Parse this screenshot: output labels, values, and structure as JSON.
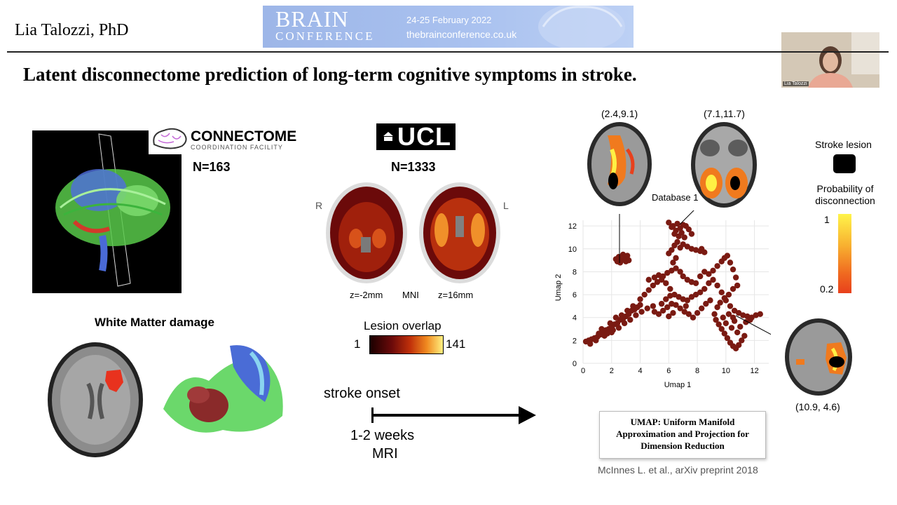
{
  "header": {
    "presenter": "Lia Talozzi, PhD",
    "banner_brand": "BRAIN",
    "banner_sub": "CONFERENCE",
    "banner_dates": "24-25 February 2022",
    "banner_url": "thebrainconference.co.uk",
    "webcam_label": "Lia Talozzi"
  },
  "slide": {
    "title": "Latent disconnectome prediction of long-term cognitive symptoms in stroke."
  },
  "left": {
    "logo_main": "CONNECTOME",
    "logo_sub": "COORDINATION FACILITY",
    "n_connectome": "N=163",
    "wm_title": "White Matter damage"
  },
  "center": {
    "ucl_logo": "UCL",
    "n_ucl": "N=1333",
    "label_r": "R",
    "label_l": "L",
    "label_z1": "z=-2mm",
    "label_mni": "MNI",
    "label_z2": "z=16mm",
    "lesion_title": "Lesion overlap",
    "lesion_min": "1",
    "lesion_max": "141",
    "stroke_onset": "stroke onset",
    "weeks": "1-2 weeks",
    "mri": "MRI"
  },
  "right": {
    "coord1": "(2.4,9.1)",
    "coord2": "(7.1,11.7)",
    "coord3": "(10.9, 4.6)",
    "database_label": "Database 1",
    "stroke_lesion_label": "Stroke lesion",
    "prob_label": "Probability of disconnection",
    "prob_max": "1",
    "prob_min": "0.2",
    "umap_box": "UMAP: Uniform Manifold Approximation and Projection for Dimension Reduction",
    "citation": "McInnes L. et al., arXiv preprint 2018"
  },
  "colors": {
    "scatter_point": "#7a1a12",
    "lesion_red": "#e8321e",
    "banner_blue": "#a9c1ef"
  },
  "chart_data": {
    "type": "scatter",
    "xlabel": "Umap 1",
    "ylabel": "Umap 2",
    "xlim": [
      0,
      13
    ],
    "ylim": [
      0,
      12.5
    ],
    "xticks": [
      0,
      2,
      4,
      6,
      8,
      10,
      12
    ],
    "yticks": [
      0,
      2,
      4,
      6,
      8,
      10,
      12
    ],
    "grid": true,
    "points": [
      [
        0.2,
        1.9
      ],
      [
        0.4,
        2.0
      ],
      [
        0.6,
        2.1
      ],
      [
        0.8,
        2.2
      ],
      [
        1.0,
        2.3
      ],
      [
        1.2,
        2.5
      ],
      [
        1.4,
        2.7
      ],
      [
        1.6,
        2.9
      ],
      [
        1.8,
        3.0
      ],
      [
        2.0,
        3.2
      ],
      [
        2.2,
        3.4
      ],
      [
        2.4,
        3.5
      ],
      [
        2.6,
        3.8
      ],
      [
        2.8,
        3.9
      ],
      [
        3.0,
        4.1
      ],
      [
        3.2,
        4.3
      ],
      [
        3.4,
        4.6
      ],
      [
        3.6,
        4.7
      ],
      [
        3.8,
        4.9
      ],
      [
        4.0,
        5.1
      ],
      [
        1.1,
        2.6
      ],
      [
        1.5,
        2.4
      ],
      [
        2.1,
        2.9
      ],
      [
        2.5,
        3.1
      ],
      [
        2.9,
        3.5
      ],
      [
        3.3,
        3.8
      ],
      [
        3.7,
        4.2
      ],
      [
        4.1,
        4.5
      ],
      [
        4.5,
        4.8
      ],
      [
        4.9,
        5.0
      ],
      [
        1.3,
        3.0
      ],
      [
        1.9,
        3.5
      ],
      [
        2.3,
        4.0
      ],
      [
        2.7,
        4.2
      ],
      [
        3.1,
        4.6
      ],
      [
        3.5,
        5.0
      ],
      [
        0.5,
        1.7
      ],
      [
        0.9,
        2.0
      ],
      [
        1.7,
        2.6
      ],
      [
        2.0,
        2.7
      ],
      [
        4.0,
        5.6
      ],
      [
        4.3,
        6.0
      ],
      [
        4.6,
        6.4
      ],
      [
        4.9,
        6.8
      ],
      [
        5.2,
        7.1
      ],
      [
        5.5,
        7.3
      ],
      [
        5.8,
        7.0
      ],
      [
        6.1,
        6.5
      ],
      [
        6.4,
        6.0
      ],
      [
        6.7,
        5.8
      ],
      [
        7.0,
        5.6
      ],
      [
        7.3,
        5.5
      ],
      [
        7.6,
        5.8
      ],
      [
        7.9,
        6.0
      ],
      [
        8.2,
        6.2
      ],
      [
        8.5,
        6.5
      ],
      [
        8.8,
        7.0
      ],
      [
        9.1,
        7.3
      ],
      [
        9.4,
        6.8
      ],
      [
        9.7,
        6.2
      ],
      [
        10.0,
        5.5
      ],
      [
        10.3,
        5.0
      ],
      [
        10.6,
        4.6
      ],
      [
        10.9,
        4.4
      ],
      [
        11.2,
        4.2
      ],
      [
        11.5,
        4.1
      ],
      [
        11.8,
        4.0
      ],
      [
        12.1,
        4.2
      ],
      [
        12.4,
        4.3
      ],
      [
        10.5,
        4.0
      ],
      [
        4.6,
        7.3
      ],
      [
        5.0,
        7.5
      ],
      [
        5.3,
        7.7
      ],
      [
        5.6,
        7.6
      ],
      [
        5.9,
        7.9
      ],
      [
        6.2,
        8.1
      ],
      [
        6.5,
        8.3
      ],
      [
        6.8,
        8.0
      ],
      [
        7.0,
        7.6
      ],
      [
        7.3,
        7.3
      ],
      [
        7.6,
        7.1
      ],
      [
        7.9,
        7.0
      ],
      [
        8.2,
        7.6
      ],
      [
        8.5,
        8.0
      ],
      [
        8.8,
        7.8
      ],
      [
        9.1,
        8.1
      ],
      [
        9.4,
        8.5
      ],
      [
        9.7,
        8.9
      ],
      [
        9.9,
        9.2
      ],
      [
        10.1,
        9.4
      ],
      [
        10.3,
        8.8
      ],
      [
        10.5,
        8.2
      ],
      [
        10.7,
        7.5
      ],
      [
        10.8,
        6.8
      ],
      [
        10.5,
        6.5
      ],
      [
        10.2,
        6.0
      ],
      [
        9.9,
        5.7
      ],
      [
        9.6,
        5.3
      ],
      [
        9.4,
        4.9
      ],
      [
        9.2,
        4.3
      ],
      [
        9.3,
        3.8
      ],
      [
        9.5,
        3.4
      ],
      [
        9.7,
        3.0
      ],
      [
        9.9,
        2.6
      ],
      [
        10.1,
        2.2
      ],
      [
        10.3,
        1.8
      ],
      [
        10.5,
        1.5
      ],
      [
        10.7,
        1.3
      ],
      [
        10.9,
        1.6
      ],
      [
        11.1,
        2.0
      ],
      [
        11.3,
        2.4
      ],
      [
        10.8,
        2.7
      ],
      [
        10.4,
        3.1
      ],
      [
        10.0,
        3.5
      ],
      [
        9.8,
        4.0
      ],
      [
        10.2,
        4.3
      ],
      [
        10.6,
        3.7
      ],
      [
        11.0,
        3.2
      ],
      [
        11.4,
        3.6
      ],
      [
        11.7,
        3.8
      ],
      [
        5.0,
        4.5
      ],
      [
        5.3,
        4.3
      ],
      [
        5.6,
        4.6
      ],
      [
        5.9,
        4.9
      ],
      [
        6.2,
        5.2
      ],
      [
        6.5,
        5.1
      ],
      [
        6.8,
        4.8
      ],
      [
        7.1,
        4.5
      ],
      [
        7.4,
        4.3
      ],
      [
        7.7,
        4.0
      ],
      [
        8.0,
        4.4
      ],
      [
        8.3,
        4.8
      ],
      [
        8.6,
        5.2
      ],
      [
        8.9,
        5.5
      ],
      [
        6.0,
        4.1
      ],
      [
        6.3,
        4.4
      ],
      [
        5.5,
        5.2
      ],
      [
        5.8,
        5.6
      ],
      [
        6.1,
        5.9
      ],
      [
        7.2,
        5.0
      ],
      [
        6.0,
        9.6
      ],
      [
        6.2,
        9.9
      ],
      [
        6.4,
        10.3
      ],
      [
        6.6,
        10.6
      ],
      [
        6.8,
        10.1
      ],
      [
        6.5,
        9.2
      ],
      [
        6.3,
        8.8
      ],
      [
        7.0,
        10.4
      ],
      [
        7.3,
        10.2
      ],
      [
        7.6,
        10.0
      ],
      [
        7.9,
        9.9
      ],
      [
        8.2,
        9.8
      ],
      [
        8.5,
        9.7
      ],
      [
        8.3,
        10.0
      ],
      [
        6.7,
        11.1
      ],
      [
        6.5,
        11.6
      ],
      [
        6.8,
        11.8
      ],
      [
        6.9,
        11.4
      ],
      [
        7.2,
        12.0
      ],
      [
        7.4,
        11.7
      ],
      [
        7.6,
        11.3
      ],
      [
        7.1,
        11.0
      ],
      [
        6.3,
        12.0
      ],
      [
        6.0,
        12.3
      ],
      [
        6.6,
        12.2
      ],
      [
        7.0,
        12.1
      ],
      [
        6.2,
        11.9
      ],
      [
        6.4,
        11.3
      ],
      [
        2.3,
        9.1
      ],
      [
        2.5,
        9.3
      ],
      [
        2.7,
        9.0
      ],
      [
        2.9,
        9.2
      ],
      [
        3.1,
        9.4
      ],
      [
        3.2,
        9.0
      ],
      [
        2.6,
        8.8
      ],
      [
        2.8,
        9.5
      ],
      [
        2.4,
        8.9
      ],
      [
        3.0,
        8.9
      ]
    ]
  }
}
